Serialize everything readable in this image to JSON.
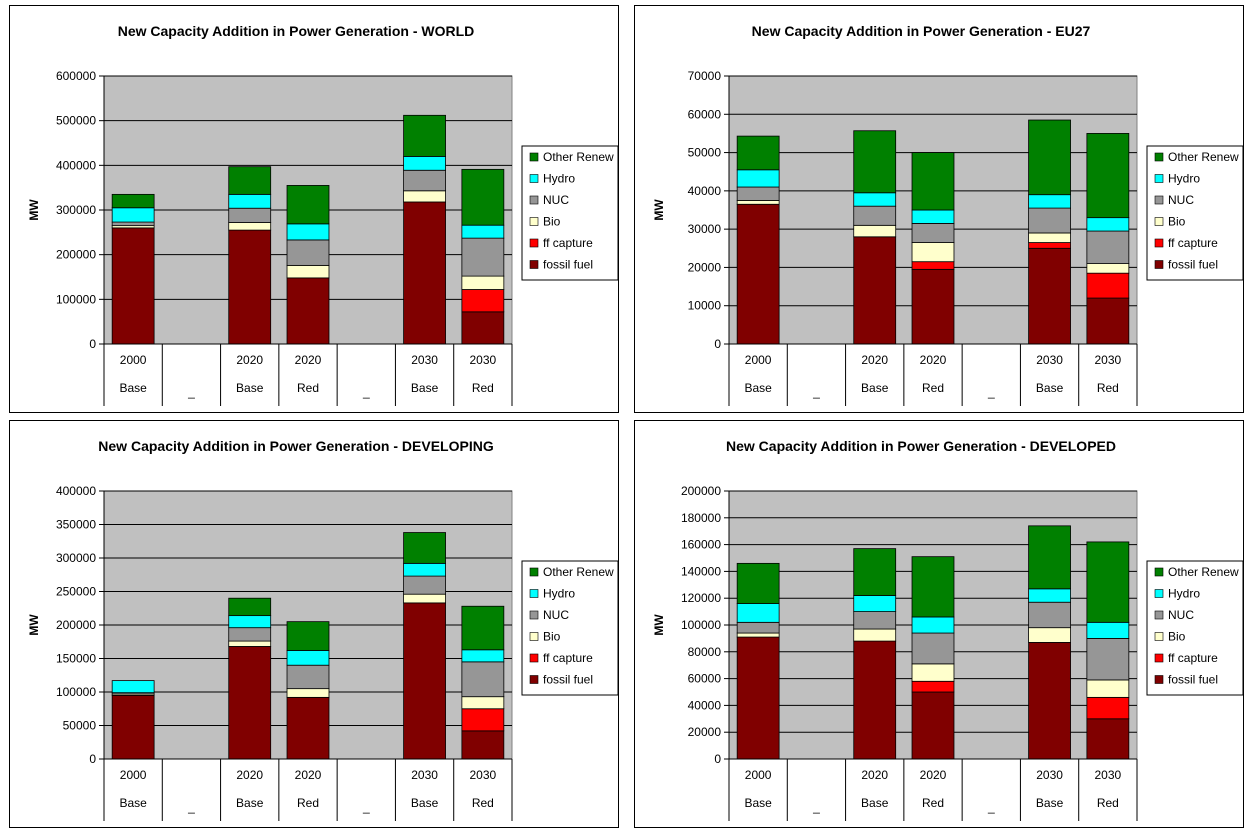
{
  "series_colors": {
    "fossil fuel": "#800000",
    "ff capture": "#ff0000",
    "Bio": "#ffffcc",
    "NUC": "#969696",
    "Hydro": "#00ffff",
    "Other Renew": "#008000"
  },
  "chart_data": [
    {
      "type": "bar",
      "stacked": true,
      "title": "New Capacity Addition in Power Generation - WORLD",
      "ylabel": "MW",
      "ylim": [
        0,
        600000
      ],
      "yticks": [
        0,
        100000,
        200000,
        300000,
        400000,
        500000,
        600000
      ],
      "grid": true,
      "legend_position": "right",
      "categories": [
        [
          "2000",
          "Base"
        ],
        [
          "",
          "_"
        ],
        [
          "2020",
          "Base"
        ],
        [
          "2020",
          "Red"
        ],
        [
          "",
          "_"
        ],
        [
          "2030",
          "Base"
        ],
        [
          "2030",
          "Red"
        ]
      ],
      "series": [
        {
          "name": "fossil fuel",
          "values": [
            260000,
            null,
            255000,
            148000,
            null,
            318000,
            72000
          ]
        },
        {
          "name": "ff capture",
          "values": [
            0,
            null,
            0,
            0,
            null,
            0,
            50000
          ]
        },
        {
          "name": "Bio",
          "values": [
            5000,
            null,
            17000,
            28000,
            null,
            25000,
            30000
          ]
        },
        {
          "name": "NUC",
          "values": [
            8000,
            null,
            32000,
            57000,
            null,
            46000,
            85000
          ]
        },
        {
          "name": "Hydro",
          "values": [
            32000,
            null,
            31000,
            36000,
            null,
            31000,
            29000
          ]
        },
        {
          "name": "Other Renew",
          "values": [
            30000,
            null,
            62000,
            86000,
            null,
            92000,
            125000
          ]
        }
      ]
    },
    {
      "type": "bar",
      "stacked": true,
      "title": "New Capacity Addition in Power Generation - EU27",
      "ylabel": "MW",
      "ylim": [
        0,
        70000
      ],
      "yticks": [
        0,
        10000,
        20000,
        30000,
        40000,
        50000,
        60000,
        70000
      ],
      "grid": true,
      "legend_position": "right",
      "categories": [
        [
          "2000",
          "Base"
        ],
        [
          "",
          "_"
        ],
        [
          "2020",
          "Base"
        ],
        [
          "2020",
          "Red"
        ],
        [
          "",
          "_"
        ],
        [
          "2030",
          "Base"
        ],
        [
          "2030",
          "Red"
        ]
      ],
      "series": [
        {
          "name": "fossil fuel",
          "values": [
            36500,
            null,
            28000,
            19500,
            null,
            25000,
            12000
          ]
        },
        {
          "name": "ff capture",
          "values": [
            0,
            null,
            0,
            2000,
            null,
            1500,
            6500
          ]
        },
        {
          "name": "Bio",
          "values": [
            1000,
            null,
            3000,
            5000,
            null,
            2500,
            2500
          ]
        },
        {
          "name": "NUC",
          "values": [
            3500,
            null,
            5000,
            5000,
            null,
            6500,
            8500
          ]
        },
        {
          "name": "Hydro",
          "values": [
            4500,
            null,
            3500,
            3500,
            null,
            3500,
            3500
          ]
        },
        {
          "name": "Other Renew",
          "values": [
            8800,
            null,
            16200,
            15000,
            null,
            19500,
            22000
          ]
        }
      ]
    },
    {
      "type": "bar",
      "stacked": true,
      "title": "New Capacity Addition in Power Generation - DEVELOPING",
      "ylabel": "MW",
      "ylim": [
        0,
        400000
      ],
      "yticks": [
        0,
        50000,
        100000,
        150000,
        200000,
        250000,
        300000,
        350000,
        400000
      ],
      "grid": true,
      "legend_position": "right",
      "categories": [
        [
          "2000",
          "Base"
        ],
        [
          "",
          "_"
        ],
        [
          "2020",
          "Base"
        ],
        [
          "2020",
          "Red"
        ],
        [
          "",
          "_"
        ],
        [
          "2030",
          "Base"
        ],
        [
          "2030",
          "Red"
        ]
      ],
      "series": [
        {
          "name": "fossil fuel",
          "values": [
            95000,
            null,
            168000,
            92000,
            null,
            233000,
            42000
          ]
        },
        {
          "name": "ff capture",
          "values": [
            0,
            null,
            0,
            0,
            null,
            0,
            33000
          ]
        },
        {
          "name": "Bio",
          "values": [
            2000,
            null,
            8000,
            13000,
            null,
            13000,
            18000
          ]
        },
        {
          "name": "NUC",
          "values": [
            2000,
            null,
            20000,
            35000,
            null,
            27000,
            52000
          ]
        },
        {
          "name": "Hydro",
          "values": [
            18000,
            null,
            18000,
            22000,
            null,
            19000,
            18000
          ]
        },
        {
          "name": "Other Renew",
          "values": [
            0,
            null,
            26000,
            43000,
            null,
            46000,
            65000
          ]
        }
      ]
    },
    {
      "type": "bar",
      "stacked": true,
      "title": "New Capacity Addition in Power Generation - DEVELOPED",
      "ylabel": "MW",
      "ylim": [
        0,
        200000
      ],
      "yticks": [
        0,
        20000,
        40000,
        60000,
        80000,
        100000,
        120000,
        140000,
        160000,
        180000,
        200000
      ],
      "grid": true,
      "legend_position": "right",
      "categories": [
        [
          "2000",
          "Base"
        ],
        [
          "",
          "_"
        ],
        [
          "2020",
          "Base"
        ],
        [
          "2020",
          "Red"
        ],
        [
          "",
          "_"
        ],
        [
          "2030",
          "Base"
        ],
        [
          "2030",
          "Red"
        ]
      ],
      "series": [
        {
          "name": "fossil fuel",
          "values": [
            91000,
            null,
            88000,
            50000,
            null,
            87000,
            30000
          ]
        },
        {
          "name": "ff capture",
          "values": [
            0,
            null,
            0,
            8000,
            null,
            0,
            16000
          ]
        },
        {
          "name": "Bio",
          "values": [
            3000,
            null,
            9000,
            13000,
            null,
            11000,
            13000
          ]
        },
        {
          "name": "NUC",
          "values": [
            8000,
            null,
            13000,
            23000,
            null,
            19000,
            31000
          ]
        },
        {
          "name": "Hydro",
          "values": [
            14000,
            null,
            12000,
            12000,
            null,
            10000,
            12000
          ]
        },
        {
          "name": "Other Renew",
          "values": [
            30000,
            null,
            35000,
            45000,
            null,
            47000,
            60000
          ]
        }
      ]
    }
  ]
}
